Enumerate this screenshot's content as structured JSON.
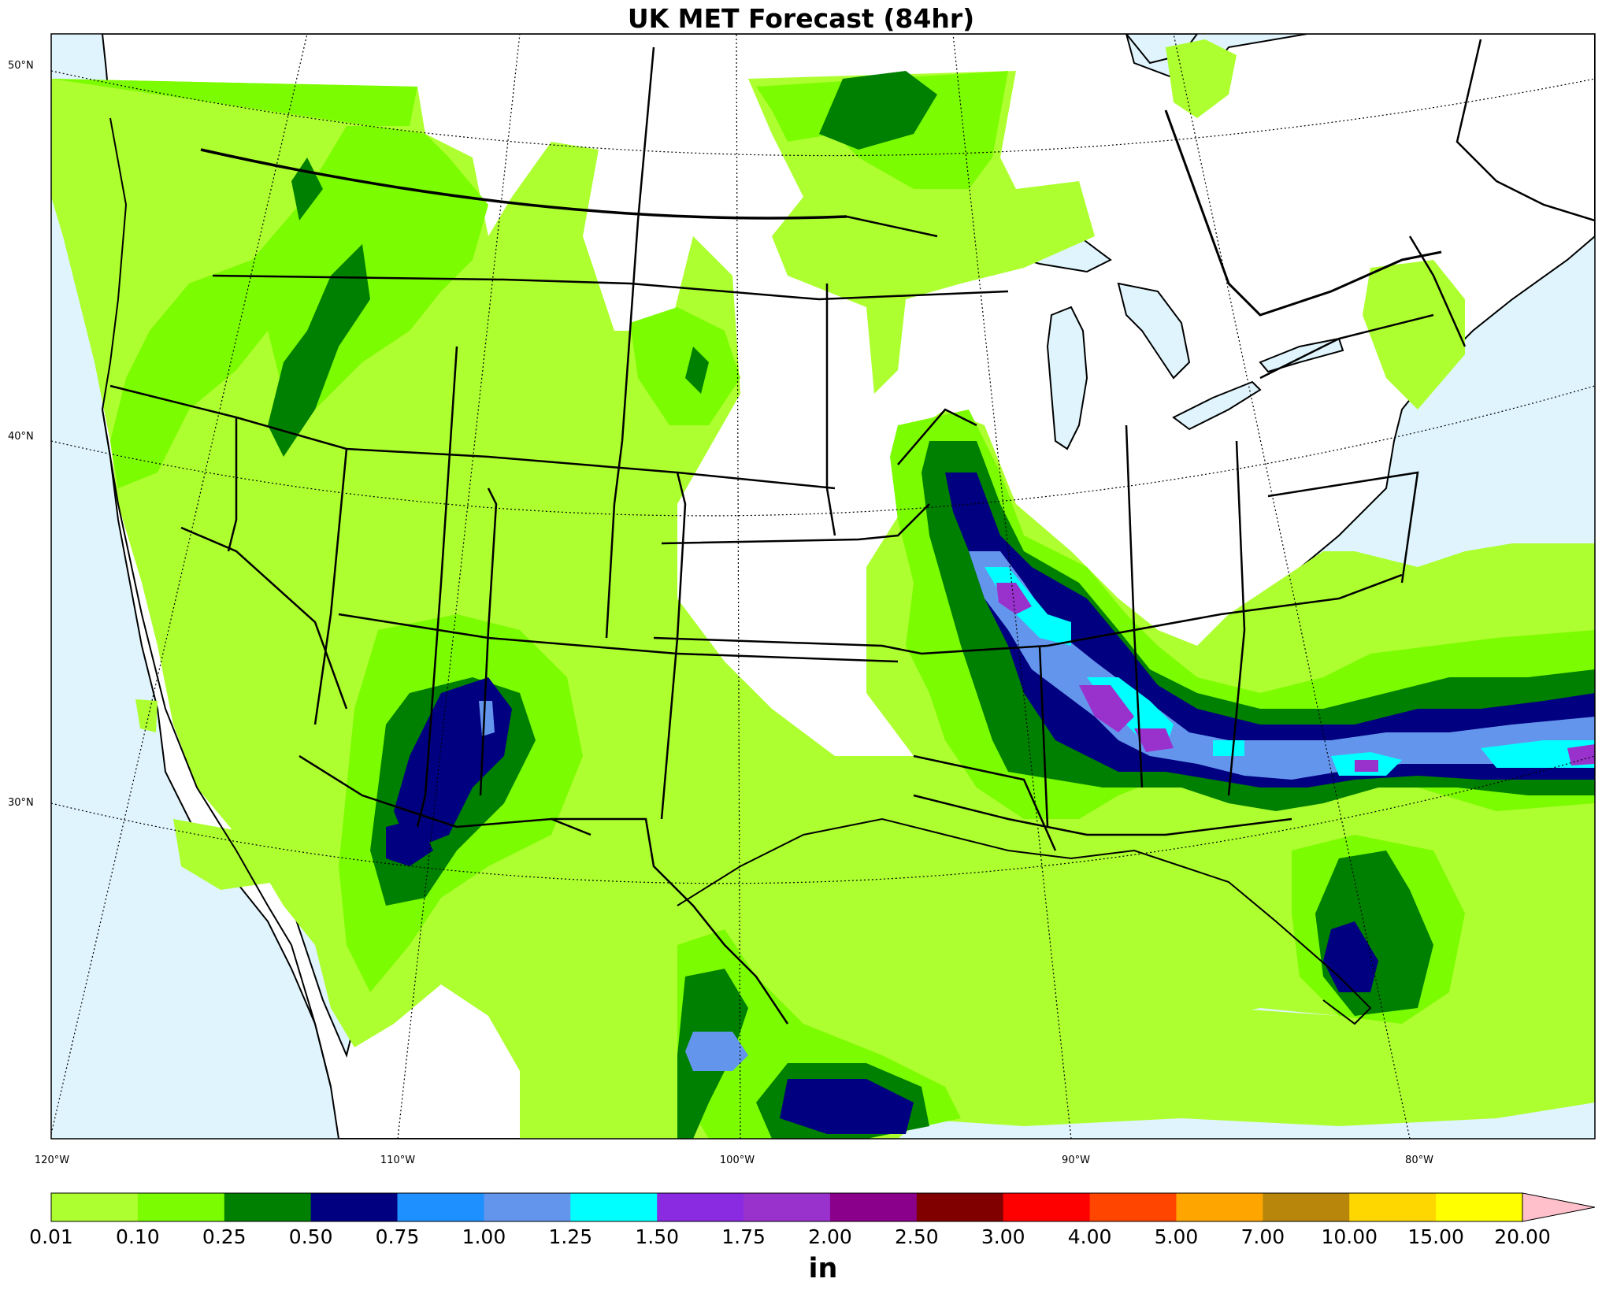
{
  "title": "UK MET Forecast (84hr)",
  "lat_labels": [
    "50°N",
    "40°N",
    "30°N"
  ],
  "lon_labels": [
    "120°W",
    "110°W",
    "100°W",
    "90°W",
    "80°W"
  ],
  "colorbar": {
    "units": "in",
    "ticks": [
      "0.01",
      "0.10",
      "0.25",
      "0.50",
      "0.75",
      "1.00",
      "1.25",
      "1.50",
      "1.75",
      "2.00",
      "2.50",
      "3.00",
      "4.00",
      "5.00",
      "7.00",
      "10.00",
      "15.00",
      "20.00"
    ],
    "colors": [
      "#adff2f",
      "#7cfc00",
      "#008000",
      "#000080",
      "#1e90ff",
      "#6495ed",
      "#00ffff",
      "#8a2be2",
      "#9932cc",
      "#8b008b",
      "#800000",
      "#ff0000",
      "#ff4500",
      "#ffa500",
      "#b8860b",
      "#ffd700",
      "#ffff00"
    ],
    "extend_color": "#ffc0cb"
  },
  "colors": {
    "ocean": "#dff4fc",
    "land": "#ffffff"
  }
}
